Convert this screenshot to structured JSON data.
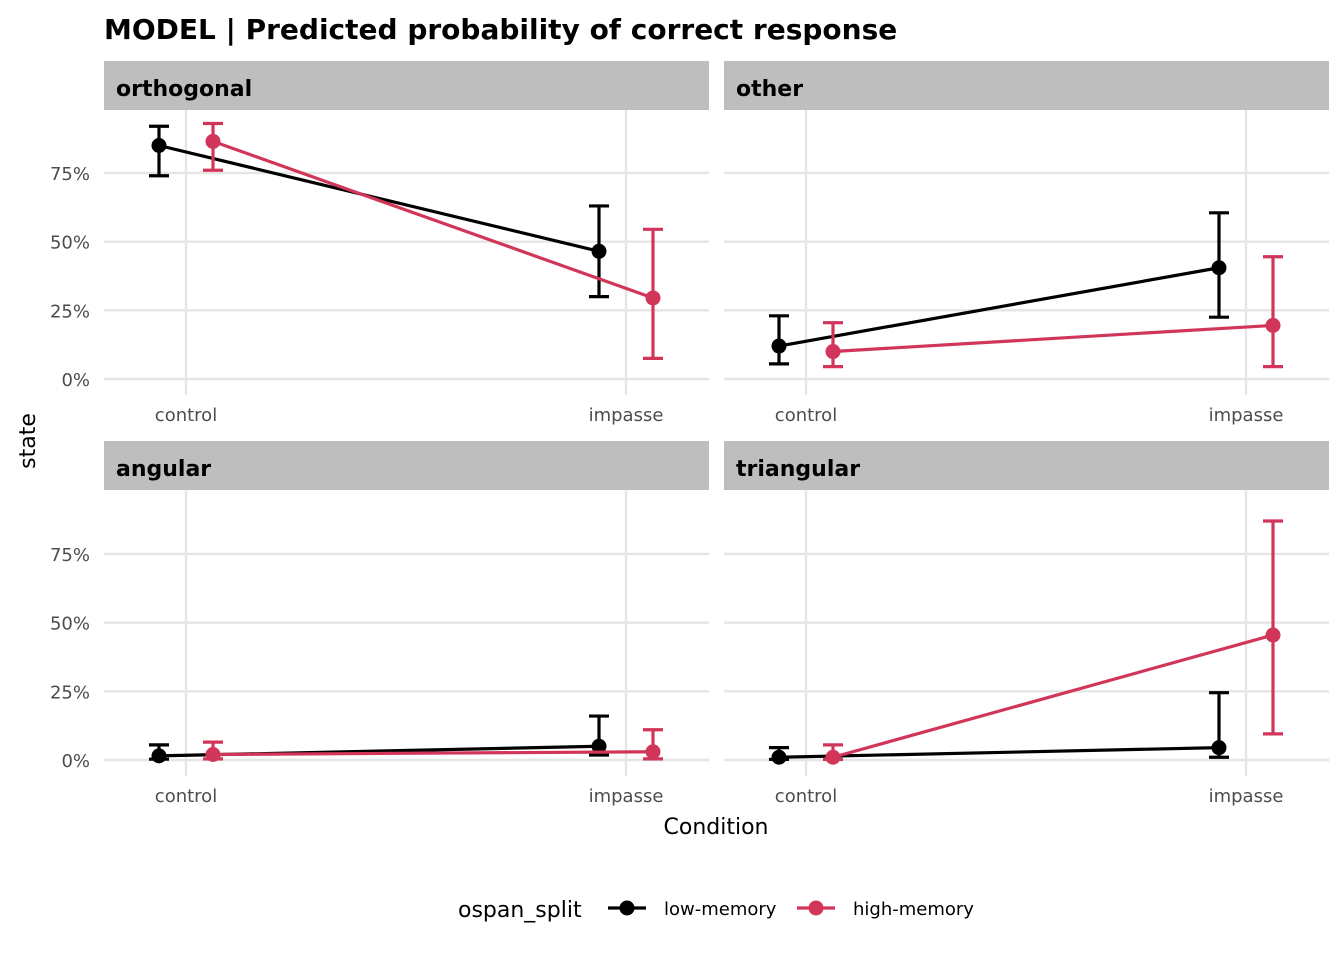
{
  "chart_data": {
    "type": "line",
    "title": "MODEL | Predicted probability of correct response",
    "xlabel": "Condition",
    "ylabel": "state",
    "categories": [
      "control",
      "impasse"
    ],
    "y_ticks": [
      "0%",
      "25%",
      "50%",
      "75%"
    ],
    "ylim": [
      0,
      1
    ],
    "grid": true,
    "legend": {
      "title": "ospan_split",
      "position": "bottom",
      "entries": [
        {
          "name": "low-memory",
          "color": "#000000"
        },
        {
          "name": "high-memory",
          "color": "#d1365a"
        }
      ]
    },
    "panels": [
      {
        "name": "orthogonal",
        "series": [
          {
            "name": "low-memory",
            "values": [
              0.85,
              0.465
            ],
            "lower": [
              0.74,
              0.3
            ],
            "upper": [
              0.92,
              0.63
            ]
          },
          {
            "name": "high-memory",
            "values": [
              0.865,
              0.295
            ],
            "lower": [
              0.76,
              0.075
            ],
            "upper": [
              0.93,
              0.545
            ]
          }
        ]
      },
      {
        "name": "other",
        "series": [
          {
            "name": "low-memory",
            "values": [
              0.12,
              0.405
            ],
            "lower": [
              0.055,
              0.225
            ],
            "upper": [
              0.23,
              0.605
            ]
          },
          {
            "name": "high-memory",
            "values": [
              0.1,
              0.195
            ],
            "lower": [
              0.045,
              0.045
            ],
            "upper": [
              0.205,
              0.445
            ]
          }
        ]
      },
      {
        "name": "angular",
        "series": [
          {
            "name": "low-memory",
            "values": [
              0.015,
              0.05
            ],
            "lower": [
              0.003,
              0.018
            ],
            "upper": [
              0.055,
              0.16
            ]
          },
          {
            "name": "high-memory",
            "values": [
              0.02,
              0.03
            ],
            "lower": [
              0.004,
              0.004
            ],
            "upper": [
              0.065,
              0.11
            ]
          }
        ]
      },
      {
        "name": "triangular",
        "series": [
          {
            "name": "low-memory",
            "values": [
              0.01,
              0.045
            ],
            "lower": [
              0.002,
              0.01
            ],
            "upper": [
              0.045,
              0.245
            ]
          },
          {
            "name": "high-memory",
            "values": [
              0.01,
              0.455
            ],
            "lower": [
              0.002,
              0.095
            ],
            "upper": [
              0.055,
              0.87
            ]
          }
        ]
      }
    ]
  }
}
